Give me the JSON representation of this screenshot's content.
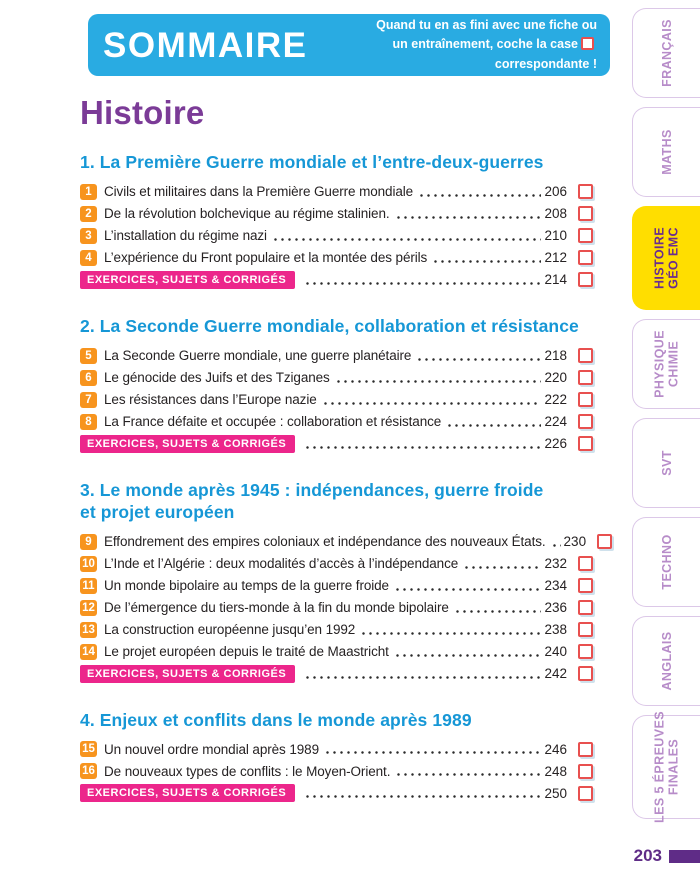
{
  "header": {
    "title": "SOMMAIRE",
    "note_line1": "Quand tu en as fini avec une fiche ou",
    "note_line2_before": "un entraînement, coche la case",
    "note_line2_after": "correspondante !"
  },
  "page": {
    "subject_title": "Histoire",
    "page_number": "203"
  },
  "exercises_label": "EXERCICES, SUJETS & CORRIGÉS",
  "sections": [
    {
      "title": "1. La Première Guerre mondiale et l’entre-deux-guerres",
      "items": [
        {
          "num": "1",
          "label": "Civils et militaires dans la Première Guerre mondiale",
          "page": "206"
        },
        {
          "num": "2",
          "label": "De la révolution bolchevique au régime stalinien.",
          "page": "208"
        },
        {
          "num": "3",
          "label": "L’installation du régime nazi",
          "page": "210"
        },
        {
          "num": "4",
          "label": "L’expérience du Front populaire et la montée des périls",
          "page": "212"
        }
      ],
      "exercises_page": "214"
    },
    {
      "title": "2. La Seconde Guerre mondiale, collaboration et résistance",
      "items": [
        {
          "num": "5",
          "label": "La Seconde Guerre mondiale, une guerre planétaire",
          "page": "218"
        },
        {
          "num": "6",
          "label": "Le génocide des Juifs et des Tziganes",
          "page": "220"
        },
        {
          "num": "7",
          "label": "Les résistances dans l’Europe nazie",
          "page": "222"
        },
        {
          "num": "8",
          "label": "La France défaite et occupée : collaboration et résistance",
          "page": "224"
        }
      ],
      "exercises_page": "226"
    },
    {
      "title": "3. Le monde après 1945 : indépendances, guerre froide\net projet européen",
      "items": [
        {
          "num": "9",
          "label": "Effondrement des empires coloniaux et indépendance des nouveaux États.",
          "page": "230"
        },
        {
          "num": "10",
          "label": "L’Inde et l’Algérie : deux modalités d’accès à l’indépendance",
          "page": "232"
        },
        {
          "num": "11",
          "label": "Un monde bipolaire au temps de la guerre froide",
          "page": "234"
        },
        {
          "num": "12",
          "label": "De l’émergence du tiers-monde à la fin du monde bipolaire",
          "page": "236"
        },
        {
          "num": "13",
          "label": "La construction européenne jusqu’en 1992",
          "page": "238"
        },
        {
          "num": "14",
          "label": "Le projet européen depuis le traité de Maastricht",
          "page": "240"
        }
      ],
      "exercises_page": "242"
    },
    {
      "title": "4. Enjeux et conflits dans le monde après 1989",
      "items": [
        {
          "num": "15",
          "label": "Un nouvel ordre mondial après 1989",
          "page": "246"
        },
        {
          "num": "16",
          "label": "De nouveaux types de conflits : le Moyen-Orient.",
          "page": "248"
        }
      ],
      "exercises_page": "250"
    }
  ],
  "tabs": [
    {
      "id": "francais",
      "label": "FRANÇAIS",
      "active": false
    },
    {
      "id": "maths",
      "label": "MATHS",
      "active": false
    },
    {
      "id": "histoire-geo-emc",
      "label": "HISTOIRE\nGÉO EMC",
      "active": true
    },
    {
      "id": "physique-chimie",
      "label": "PHYSIQUE\nCHIMIE",
      "active": false
    },
    {
      "id": "svt",
      "label": "SVT",
      "active": false
    },
    {
      "id": "techno",
      "label": "TECHNO",
      "active": false
    },
    {
      "id": "anglais",
      "label": "ANGLAIS",
      "active": false
    },
    {
      "id": "les-5-epreuves-finales",
      "label": "LES 5 ÉPREUVES\nFINALES",
      "active": false
    }
  ],
  "colors": {
    "banner_cyan": "#29ABE2",
    "section_blue": "#1697D6",
    "title_purple": "#7B3B97",
    "folio_purple": "#5F2C87",
    "badge_orange": "#F7941E",
    "exercises_pink": "#EC268B",
    "active_tab_yellow": "#FFDE00",
    "checkbox_red": "#E8504F",
    "tab_label_purple": "#B78CC9"
  }
}
